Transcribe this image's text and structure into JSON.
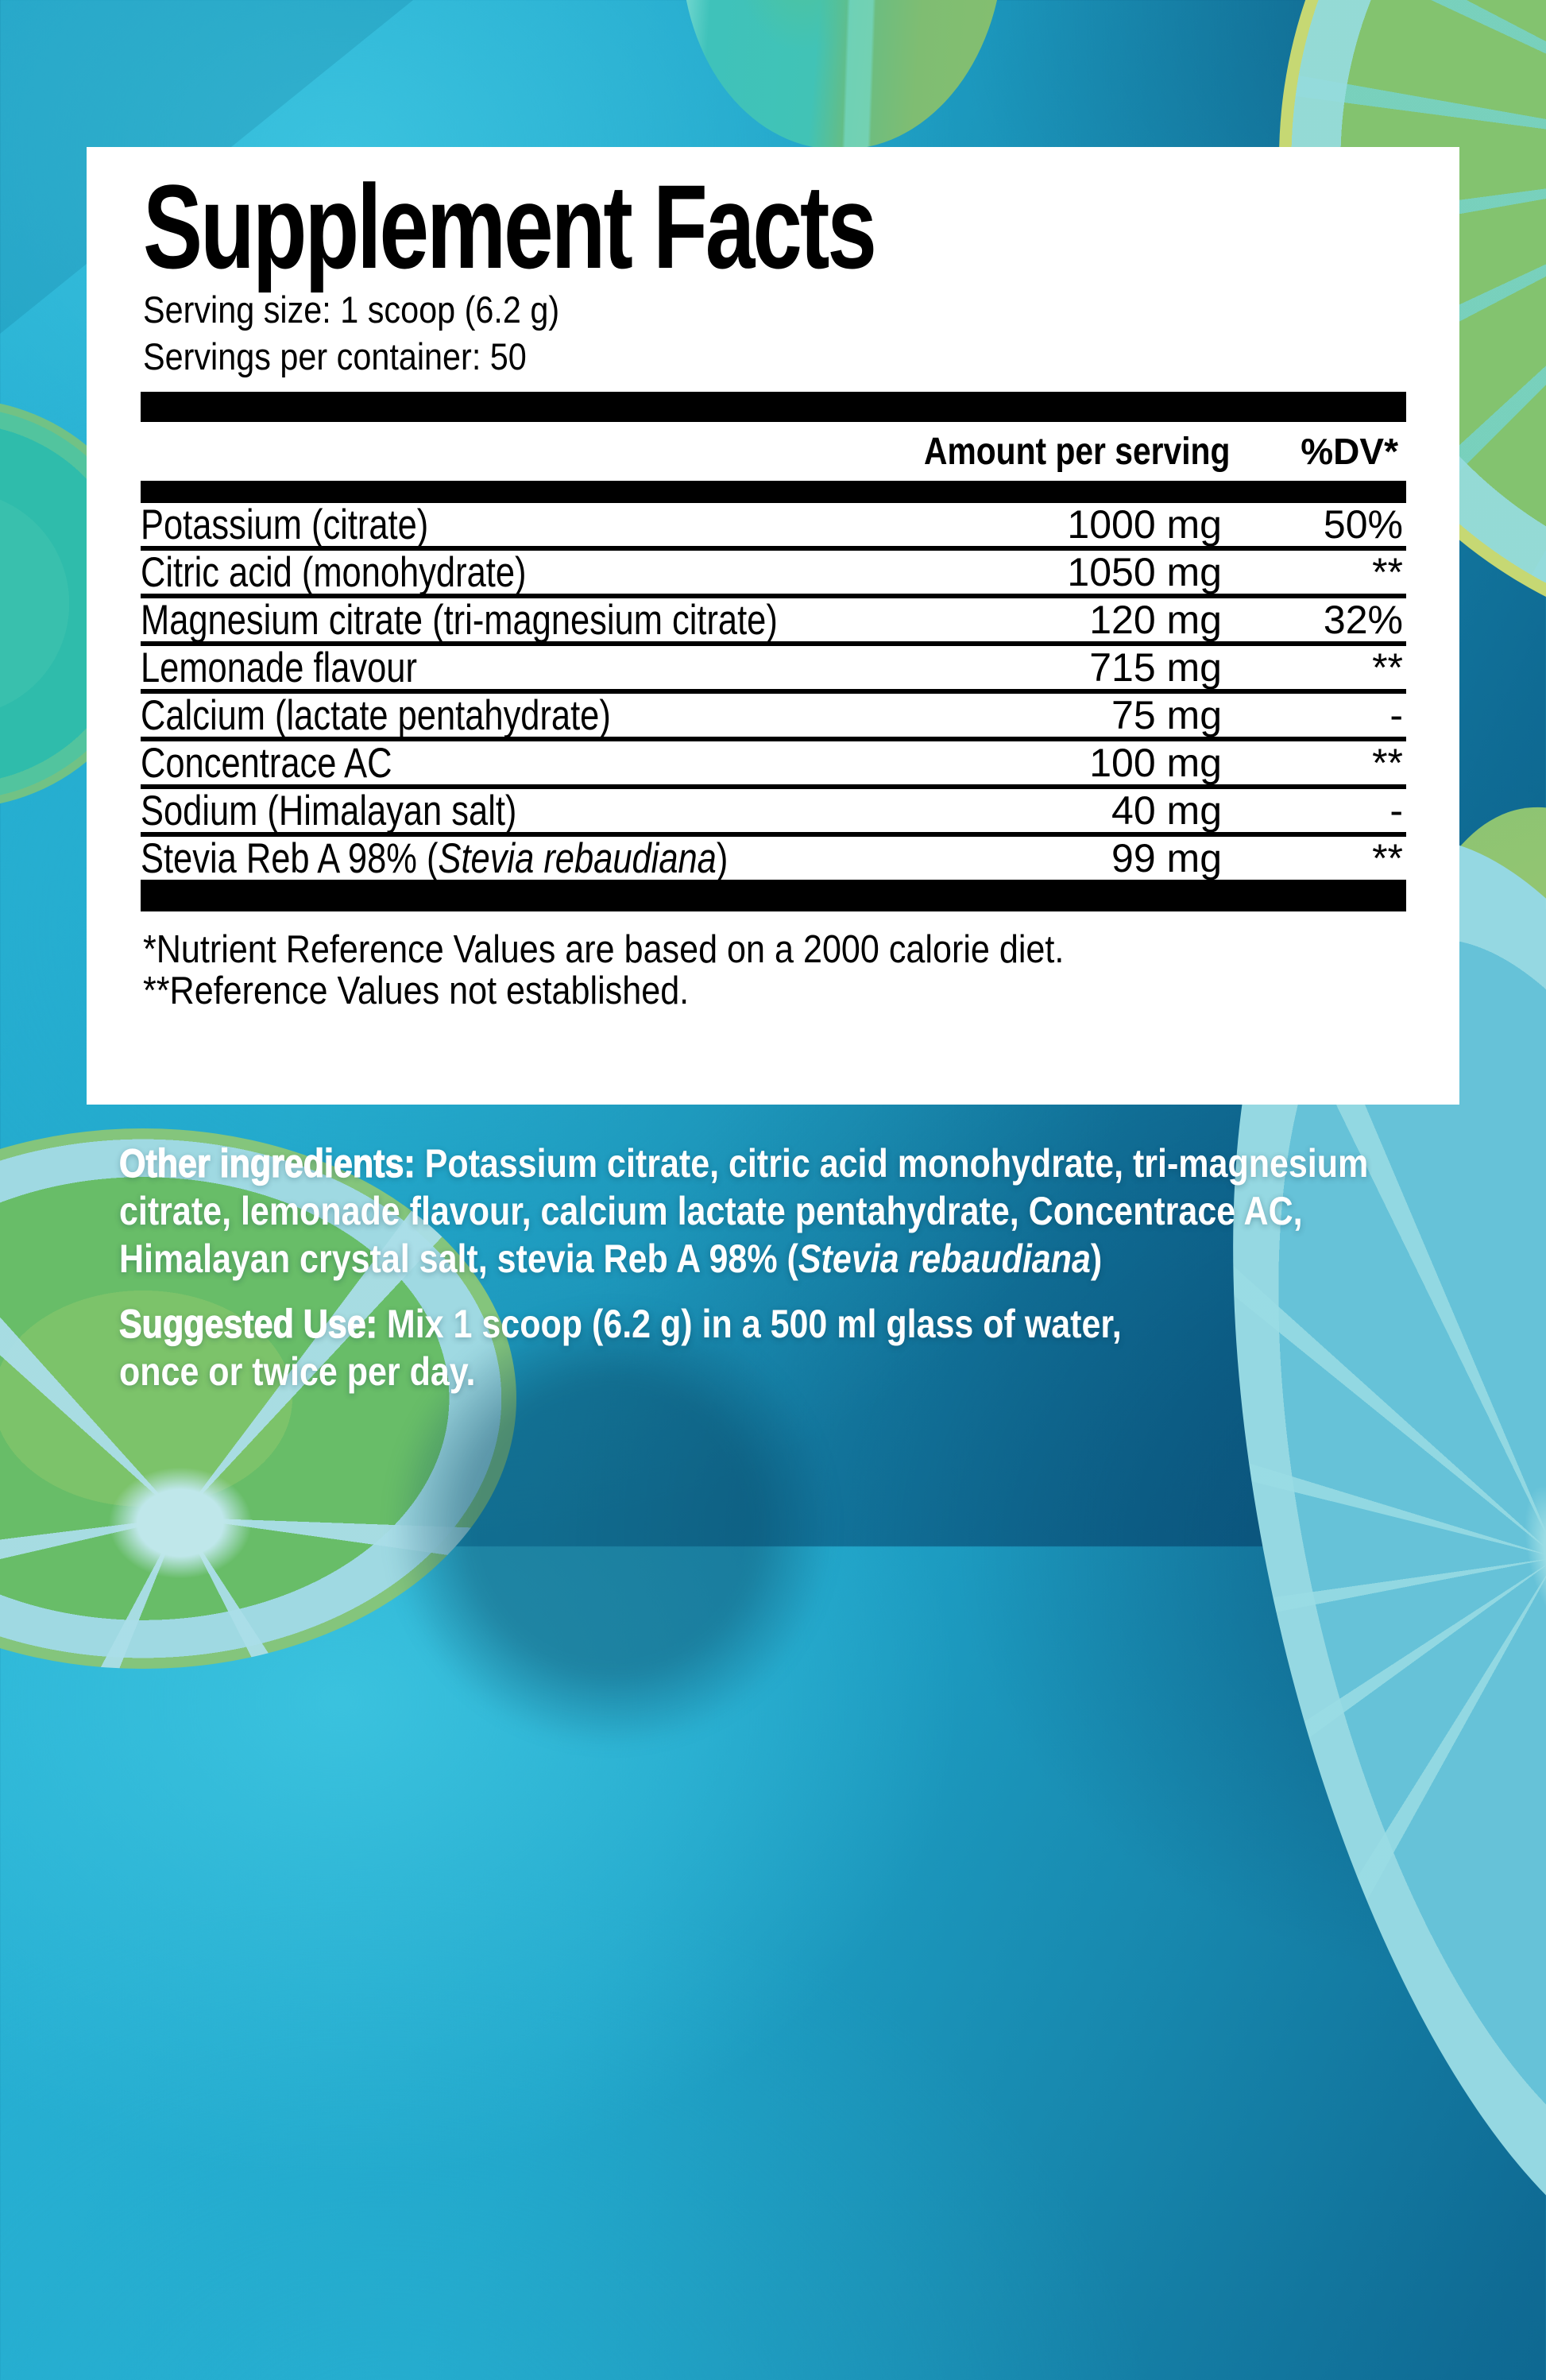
{
  "colors": {
    "background_top_left": "#2bb5d7",
    "background_bottom_right": "#0c5d87",
    "panel_bg": "#ffffff",
    "panel_text": "#000000",
    "body_text": "#ffffff",
    "lemon_green": "#7cc36e",
    "lemon_teal": "#49c2b1",
    "lemon_rind_blue": "#a9dde6",
    "lemon_peel_yellow": "#bdd173"
  },
  "label": {
    "title": "Supplement Facts",
    "serving_size": "Serving size: 1 scoop (6.2 g)",
    "servings_per_container": "Servings per container: 50",
    "columns": {
      "amount": "Amount per serving",
      "dv": "%DV*"
    },
    "rows": [
      {
        "name": "Potassium (citrate)",
        "amount": "1000 mg",
        "dv": "50%"
      },
      {
        "name": "Citric acid (monohydrate)",
        "amount": "1050 mg",
        "dv": "**"
      },
      {
        "name": "Magnesium citrate (tri-magnesium citrate)",
        "amount": "120 mg",
        "dv": "32%"
      },
      {
        "name": "Lemonade flavour",
        "amount": "715 mg",
        "dv": "**"
      },
      {
        "name": "Calcium (lactate pentahydrate)",
        "amount": "75 mg",
        "dv": "-"
      },
      {
        "name": "Concentrace AC",
        "amount": "100 mg",
        "dv": "**"
      },
      {
        "name": "Sodium (Himalayan salt)",
        "amount": "40 mg",
        "dv": "-"
      },
      {
        "name_prefix": "Stevia Reb A 98% (",
        "name_italic": "Stevia rebaudiana",
        "name_suffix": ")",
        "amount": "99 mg",
        "dv": "**"
      }
    ],
    "footnote1": "*Nutrient Reference Values are based on a 2000 calorie diet.",
    "footnote2": "**Reference Values not established."
  },
  "other_ingredients": {
    "label": "Other ingredients:",
    "line1_rest": " Potassium citrate, citric acid monohydrate, tri-magnesium",
    "line2": "citrate, lemonade flavour, calcium lactate pentahydrate, Concentrace AC,",
    "line3_prefix": "Himalayan crystal salt, stevia Reb A 98% (",
    "line3_italic": "Stevia rebaudiana",
    "line3_suffix": ")"
  },
  "suggested_use": {
    "label": "Suggested Use:",
    "line1_rest": " Mix 1 scoop (6.2 g) in a 500 ml glass of water,",
    "line2": "once or twice per day."
  }
}
